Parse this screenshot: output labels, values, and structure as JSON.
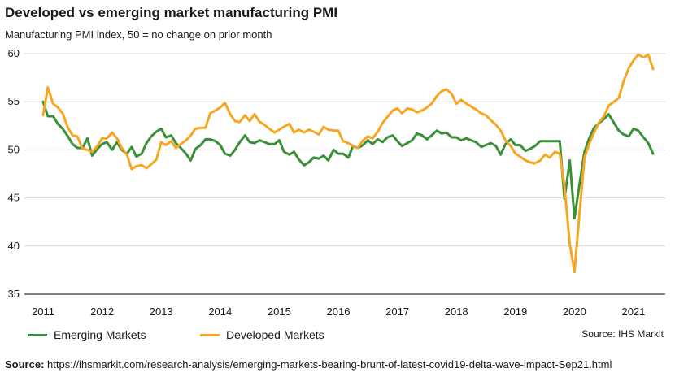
{
  "chart_data": {
    "type": "line",
    "title": "Developed vs emerging market manufacturing PMI",
    "subtitle": "Manufacturing PMI index, 50 = no change on prior month",
    "xlabel": "",
    "ylabel": "",
    "ylim": [
      35,
      60
    ],
    "y_ticks": [
      "35",
      "40",
      "45",
      "50",
      "55",
      "60"
    ],
    "x_range": [
      2011,
      2021.7
    ],
    "x_ticks": [
      "2011",
      "2012",
      "2013",
      "2014",
      "2015",
      "2016",
      "2017",
      "2018",
      "2019",
      "2020",
      "2021"
    ],
    "grid": "horizontal",
    "legend_position": "bottom-left",
    "series": [
      {
        "name": "Emerging Markets",
        "color": "#3a8f3a",
        "points": [
          [
            2011.0,
            55.0
          ],
          [
            2011.08,
            53.5
          ],
          [
            2011.17,
            53.5
          ],
          [
            2011.25,
            52.7
          ],
          [
            2011.33,
            52.2
          ],
          [
            2011.42,
            51.4
          ],
          [
            2011.5,
            50.6
          ],
          [
            2011.58,
            50.2
          ],
          [
            2011.67,
            50.2
          ],
          [
            2011.75,
            51.2
          ],
          [
            2011.83,
            49.4
          ],
          [
            2011.92,
            50.1
          ],
          [
            2012.0,
            50.6
          ],
          [
            2012.08,
            50.8
          ],
          [
            2012.17,
            50.0
          ],
          [
            2012.25,
            50.8
          ],
          [
            2012.33,
            50.0
          ],
          [
            2012.42,
            49.6
          ],
          [
            2012.5,
            50.3
          ],
          [
            2012.58,
            49.3
          ],
          [
            2012.67,
            49.6
          ],
          [
            2012.75,
            50.7
          ],
          [
            2012.83,
            51.4
          ],
          [
            2012.92,
            51.9
          ],
          [
            2013.0,
            52.2
          ],
          [
            2013.08,
            51.3
          ],
          [
            2013.17,
            51.5
          ],
          [
            2013.25,
            50.7
          ],
          [
            2013.33,
            50.2
          ],
          [
            2013.42,
            49.6
          ],
          [
            2013.5,
            48.9
          ],
          [
            2013.58,
            50.1
          ],
          [
            2013.67,
            50.5
          ],
          [
            2013.75,
            51.1
          ],
          [
            2013.83,
            51.1
          ],
          [
            2013.92,
            50.9
          ],
          [
            2014.0,
            50.5
          ],
          [
            2014.08,
            49.6
          ],
          [
            2014.17,
            49.4
          ],
          [
            2014.25,
            50.0
          ],
          [
            2014.33,
            50.8
          ],
          [
            2014.42,
            51.5
          ],
          [
            2014.5,
            50.8
          ],
          [
            2014.58,
            50.7
          ],
          [
            2014.67,
            51.0
          ],
          [
            2014.75,
            50.8
          ],
          [
            2014.83,
            50.6
          ],
          [
            2014.92,
            50.6
          ],
          [
            2015.0,
            51.0
          ],
          [
            2015.08,
            49.8
          ],
          [
            2015.17,
            49.5
          ],
          [
            2015.25,
            49.8
          ],
          [
            2015.33,
            49.0
          ],
          [
            2015.42,
            48.4
          ],
          [
            2015.5,
            48.7
          ],
          [
            2015.58,
            49.2
          ],
          [
            2015.67,
            49.1
          ],
          [
            2015.75,
            49.4
          ],
          [
            2015.83,
            48.9
          ],
          [
            2015.92,
            50.0
          ],
          [
            2016.0,
            49.6
          ],
          [
            2016.08,
            49.6
          ],
          [
            2016.17,
            49.2
          ],
          [
            2016.25,
            50.4
          ],
          [
            2016.33,
            50.2
          ],
          [
            2016.42,
            50.5
          ],
          [
            2016.5,
            51.0
          ],
          [
            2016.58,
            50.6
          ],
          [
            2016.67,
            51.1
          ],
          [
            2016.75,
            50.8
          ],
          [
            2016.83,
            51.3
          ],
          [
            2016.92,
            51.5
          ],
          [
            2017.0,
            50.9
          ],
          [
            2017.08,
            50.4
          ],
          [
            2017.17,
            50.7
          ],
          [
            2017.25,
            51.0
          ],
          [
            2017.33,
            51.7
          ],
          [
            2017.42,
            51.5
          ],
          [
            2017.5,
            51.1
          ],
          [
            2017.58,
            51.5
          ],
          [
            2017.67,
            52.0
          ],
          [
            2017.75,
            51.7
          ],
          [
            2017.83,
            51.8
          ],
          [
            2017.92,
            51.3
          ],
          [
            2018.0,
            51.3
          ],
          [
            2018.08,
            51.0
          ],
          [
            2018.17,
            51.2
          ],
          [
            2018.25,
            51.0
          ],
          [
            2018.33,
            50.8
          ],
          [
            2018.42,
            50.3
          ],
          [
            2018.5,
            50.5
          ],
          [
            2018.58,
            50.7
          ],
          [
            2018.67,
            50.4
          ],
          [
            2018.75,
            49.5
          ],
          [
            2018.83,
            50.6
          ],
          [
            2018.92,
            51.1
          ],
          [
            2019.0,
            50.5
          ],
          [
            2019.08,
            50.5
          ],
          [
            2019.17,
            49.9
          ],
          [
            2019.25,
            50.1
          ],
          [
            2019.33,
            50.4
          ],
          [
            2019.42,
            50.9
          ],
          [
            2019.5,
            50.9
          ],
          [
            2019.58,
            50.9
          ],
          [
            2019.67,
            50.9
          ],
          [
            2019.75,
            50.9
          ],
          [
            2019.83,
            44.9
          ],
          [
            2019.92,
            48.9
          ],
          [
            2020.0,
            42.9
          ],
          [
            2020.08,
            46.2
          ],
          [
            2020.17,
            49.8
          ],
          [
            2020.25,
            51.2
          ],
          [
            2020.33,
            52.3
          ],
          [
            2020.42,
            52.8
          ],
          [
            2020.5,
            53.2
          ],
          [
            2020.58,
            53.7
          ],
          [
            2020.67,
            52.8
          ],
          [
            2020.75,
            52.0
          ],
          [
            2020.83,
            51.6
          ],
          [
            2020.92,
            51.4
          ],
          [
            2021.0,
            52.2
          ],
          [
            2021.08,
            52.0
          ],
          [
            2021.17,
            51.3
          ],
          [
            2021.25,
            50.7
          ],
          [
            2021.33,
            49.6
          ]
        ]
      },
      {
        "name": "Developed Markets",
        "color": "#f5a623",
        "points": [
          [
            2011.0,
            53.6
          ],
          [
            2011.08,
            56.5
          ],
          [
            2011.17,
            54.8
          ],
          [
            2011.25,
            54.4
          ],
          [
            2011.33,
            53.8
          ],
          [
            2011.42,
            52.3
          ],
          [
            2011.5,
            51.5
          ],
          [
            2011.58,
            51.4
          ],
          [
            2011.67,
            50.1
          ],
          [
            2011.75,
            50.0
          ],
          [
            2011.83,
            49.8
          ],
          [
            2011.92,
            50.4
          ],
          [
            2012.0,
            51.2
          ],
          [
            2012.08,
            51.2
          ],
          [
            2012.17,
            51.8
          ],
          [
            2012.25,
            51.2
          ],
          [
            2012.33,
            50.2
          ],
          [
            2012.42,
            49.5
          ],
          [
            2012.5,
            48.0
          ],
          [
            2012.58,
            48.3
          ],
          [
            2012.67,
            48.4
          ],
          [
            2012.75,
            48.1
          ],
          [
            2012.83,
            48.5
          ],
          [
            2012.92,
            49.0
          ],
          [
            2013.0,
            50.8
          ],
          [
            2013.08,
            50.5
          ],
          [
            2013.17,
            50.9
          ],
          [
            2013.25,
            50.2
          ],
          [
            2013.33,
            50.6
          ],
          [
            2013.42,
            51.0
          ],
          [
            2013.5,
            51.5
          ],
          [
            2013.58,
            52.2
          ],
          [
            2013.67,
            52.3
          ],
          [
            2013.75,
            52.3
          ],
          [
            2013.83,
            53.8
          ],
          [
            2013.92,
            54.1
          ],
          [
            2014.0,
            54.4
          ],
          [
            2014.08,
            54.9
          ],
          [
            2014.17,
            53.7
          ],
          [
            2014.25,
            53.0
          ],
          [
            2014.33,
            52.9
          ],
          [
            2014.42,
            53.6
          ],
          [
            2014.5,
            53.0
          ],
          [
            2014.58,
            53.7
          ],
          [
            2014.67,
            52.9
          ],
          [
            2014.75,
            52.6
          ],
          [
            2014.83,
            52.2
          ],
          [
            2014.92,
            51.8
          ],
          [
            2015.0,
            52.1
          ],
          [
            2015.08,
            52.4
          ],
          [
            2015.17,
            52.7
          ],
          [
            2015.25,
            51.8
          ],
          [
            2015.33,
            52.1
          ],
          [
            2015.42,
            51.8
          ],
          [
            2015.5,
            52.1
          ],
          [
            2015.58,
            51.9
          ],
          [
            2015.67,
            51.6
          ],
          [
            2015.75,
            52.4
          ],
          [
            2015.83,
            52.1
          ],
          [
            2015.92,
            52.0
          ],
          [
            2016.0,
            52.0
          ],
          [
            2016.08,
            50.9
          ],
          [
            2016.17,
            50.7
          ],
          [
            2016.25,
            50.4
          ],
          [
            2016.33,
            50.2
          ],
          [
            2016.42,
            51.0
          ],
          [
            2016.5,
            51.4
          ],
          [
            2016.58,
            51.2
          ],
          [
            2016.67,
            51.9
          ],
          [
            2016.75,
            52.8
          ],
          [
            2016.83,
            53.4
          ],
          [
            2016.92,
            54.1
          ],
          [
            2017.0,
            54.3
          ],
          [
            2017.08,
            53.8
          ],
          [
            2017.17,
            54.3
          ],
          [
            2017.25,
            54.2
          ],
          [
            2017.33,
            53.9
          ],
          [
            2017.42,
            54.1
          ],
          [
            2017.5,
            54.4
          ],
          [
            2017.58,
            54.8
          ],
          [
            2017.67,
            55.6
          ],
          [
            2017.75,
            56.1
          ],
          [
            2017.83,
            56.3
          ],
          [
            2017.92,
            55.8
          ],
          [
            2018.0,
            54.8
          ],
          [
            2018.08,
            55.2
          ],
          [
            2018.17,
            54.8
          ],
          [
            2018.25,
            54.5
          ],
          [
            2018.33,
            54.2
          ],
          [
            2018.42,
            53.8
          ],
          [
            2018.5,
            53.6
          ],
          [
            2018.58,
            53.1
          ],
          [
            2018.67,
            52.6
          ],
          [
            2018.75,
            52.0
          ],
          [
            2018.83,
            51.0
          ],
          [
            2018.92,
            50.4
          ],
          [
            2019.0,
            49.6
          ],
          [
            2019.08,
            49.3
          ],
          [
            2019.17,
            48.9
          ],
          [
            2019.25,
            48.7
          ],
          [
            2019.33,
            48.6
          ],
          [
            2019.42,
            48.9
          ],
          [
            2019.5,
            49.5
          ],
          [
            2019.58,
            49.2
          ],
          [
            2019.67,
            49.8
          ],
          [
            2019.75,
            49.6
          ],
          [
            2019.83,
            46.2
          ],
          [
            2019.92,
            40.2
          ],
          [
            2020.0,
            37.3
          ],
          [
            2020.08,
            43.0
          ],
          [
            2020.17,
            49.2
          ],
          [
            2020.25,
            50.6
          ],
          [
            2020.33,
            51.8
          ],
          [
            2020.42,
            52.9
          ],
          [
            2020.5,
            53.5
          ],
          [
            2020.58,
            54.6
          ],
          [
            2020.67,
            55.0
          ],
          [
            2020.75,
            55.4
          ],
          [
            2020.83,
            57.1
          ],
          [
            2020.92,
            58.5
          ],
          [
            2021.0,
            59.3
          ],
          [
            2021.08,
            59.9
          ],
          [
            2021.17,
            59.6
          ],
          [
            2021.25,
            59.9
          ],
          [
            2021.33,
            58.4
          ]
        ]
      }
    ]
  },
  "legend": {
    "emerging_label": "Emerging Markets",
    "developed_label": "Developed Markets"
  },
  "source_note": "Source: IHS Markit",
  "footer": {
    "label": "Source:",
    "url": "https://ihsmarkit.com/research-analysis/emerging-markets-bearing-brunt-of-latest-covid19-delta-wave-impact-Sep21.html"
  },
  "colors": {
    "grid": "#d9d9d9",
    "axis": "#333333"
  }
}
